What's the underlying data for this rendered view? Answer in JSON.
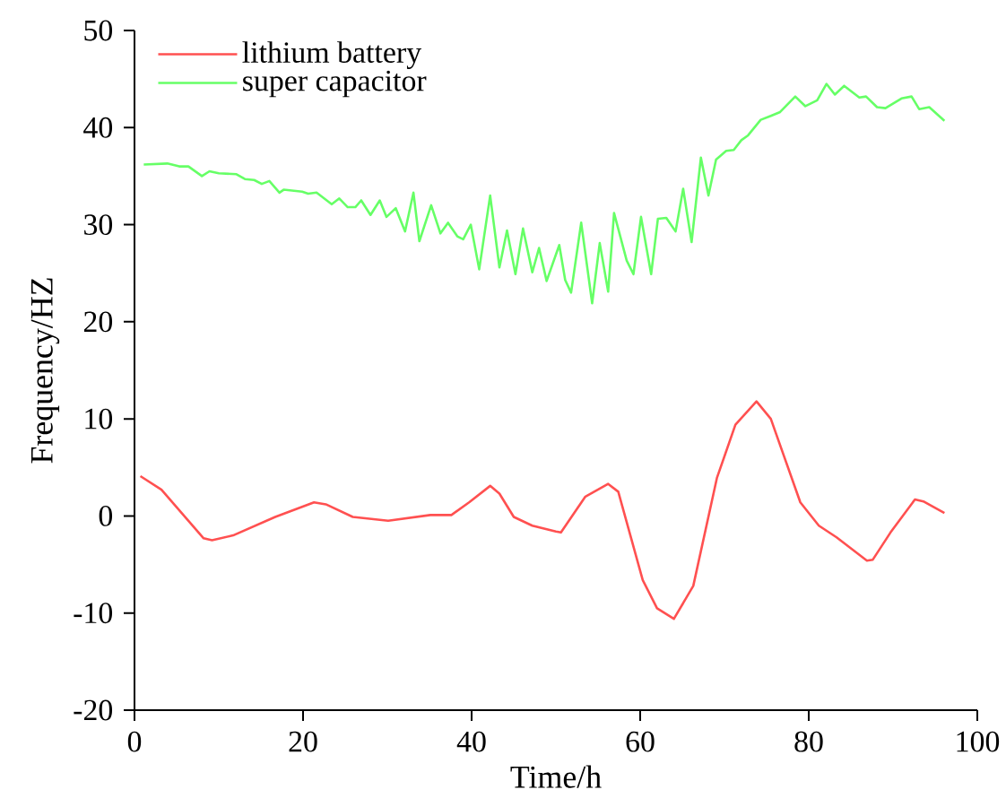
{
  "chart_data": {
    "type": "line",
    "xlabel": "Time/h",
    "ylabel": "Frequency/HZ",
    "xlim": [
      0,
      100
    ],
    "ylim": [
      -20,
      50
    ],
    "xticks": [
      0,
      20,
      40,
      60,
      80,
      100
    ],
    "yticks": [
      -20,
      -10,
      0,
      10,
      20,
      30,
      40,
      50
    ],
    "legend": "top left",
    "grid": false,
    "marker": "none",
    "line_style": "solid",
    "series": [
      {
        "name": "lithium battery",
        "color": "#ff5050",
        "x": [
          0.7,
          3.2,
          5.7,
          8.2,
          9.2,
          11.7,
          16.7,
          21.3,
          22.7,
          25.9,
          30.1,
          35.1,
          37.6,
          39.7,
          42.2,
          43.3,
          45,
          47.2,
          50,
          50.6,
          53.5,
          56.2,
          57.4,
          60.3,
          62,
          64,
          66.3,
          69.1,
          71.3,
          73.8,
          75.5,
          79,
          81.2,
          83.3,
          86.9,
          87.6,
          89.7,
          92.6,
          93.6,
          96.1
        ],
        "values": [
          4.1,
          2.7,
          0.2,
          -2.3,
          -2.5,
          -2.0,
          -0.1,
          1.4,
          1.2,
          -0.1,
          -0.5,
          0.1,
          0.1,
          1.4,
          3.1,
          2.3,
          -0.1,
          -1.0,
          -1.6,
          -1.7,
          2.0,
          3.3,
          2.5,
          -6.6,
          -9.5,
          -10.6,
          -7.2,
          3.9,
          9.4,
          11.8,
          10.0,
          1.4,
          -1.0,
          -2.2,
          -4.6,
          -4.5,
          -1.7,
          1.7,
          1.5,
          0.3
        ]
      },
      {
        "name": "super capacitor",
        "color": "#66ff66",
        "x": [
          1.1,
          3.9,
          5.3,
          6.4,
          8.0,
          8.9,
          10,
          12.1,
          13.1,
          14.2,
          15.1,
          16,
          17.2,
          17.7,
          19.9,
          20.6,
          21.6,
          23.4,
          24.3,
          25.3,
          26.2,
          26.9,
          28,
          29.1,
          29.9,
          31,
          32.1,
          33.1,
          33.8,
          35.2,
          36.3,
          37.2,
          38.3,
          39,
          39.9,
          40.9,
          42.2,
          43.3,
          44.2,
          45.2,
          46.1,
          47.2,
          48,
          48.9,
          50.4,
          51.1,
          51.8,
          53,
          54.3,
          55.2,
          56.2,
          56.9,
          58.4,
          59.2,
          60.1,
          61.3,
          62.1,
          63.1,
          64.2,
          65.1,
          66.1,
          67.2,
          68.1,
          69,
          70.2,
          71.1,
          72,
          72.8,
          74.3,
          75.5,
          76.6,
          78.4,
          79.6,
          81,
          82.1,
          83.1,
          84.2,
          86,
          86.8,
          88.1,
          89.1,
          91,
          92.2,
          93.1,
          94.3,
          96.1
        ],
        "values": [
          36.2,
          36.3,
          36.0,
          36.0,
          35.0,
          35.5,
          35.3,
          35.2,
          34.7,
          34.6,
          34.2,
          34.5,
          33.3,
          33.6,
          33.4,
          33.2,
          33.3,
          32.1,
          32.7,
          31.8,
          31.8,
          32.5,
          31.0,
          32.5,
          30.8,
          31.7,
          29.3,
          33.3,
          28.3,
          32.0,
          29.1,
          30.2,
          28.8,
          28.5,
          30.0,
          25.4,
          33.0,
          25.6,
          29.4,
          24.9,
          29.6,
          25.1,
          27.6,
          24.2,
          27.9,
          24.3,
          23.0,
          30.2,
          21.9,
          28.1,
          23.1,
          31.2,
          26.3,
          24.9,
          30.8,
          24.9,
          30.6,
          30.7,
          29.3,
          33.7,
          28.2,
          36.9,
          33.0,
          36.7,
          37.6,
          37.7,
          38.7,
          39.2,
          40.8,
          41.2,
          41.6,
          43.2,
          42.2,
          42.8,
          44.5,
          43.4,
          44.3,
          43.1,
          43.2,
          42.1,
          42.0,
          43.0,
          43.2,
          41.9,
          42.1,
          40.7
        ]
      }
    ]
  }
}
